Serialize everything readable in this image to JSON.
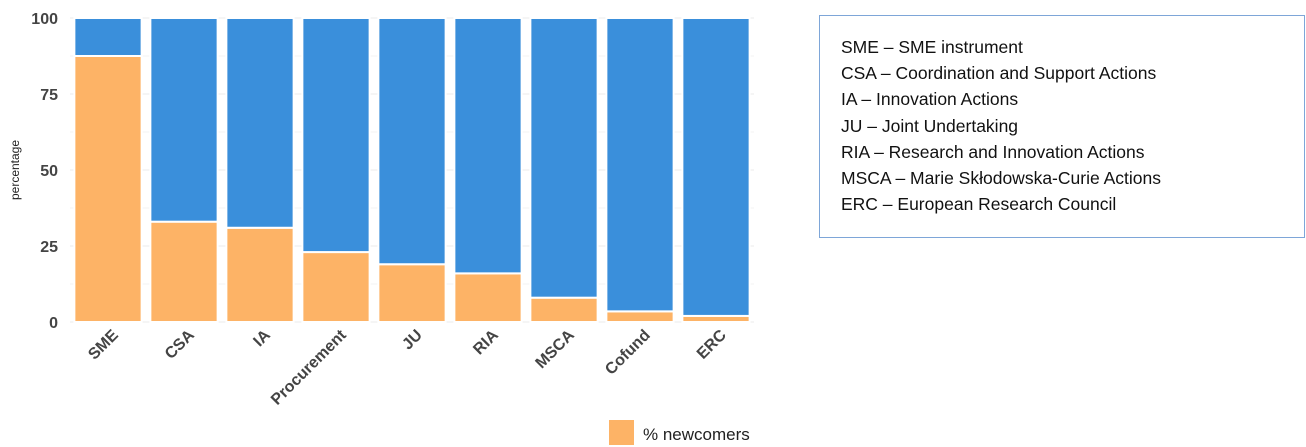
{
  "chart_data": {
    "type": "bar",
    "stacked": true,
    "categories": [
      "SME",
      "CSA",
      "IA",
      "Procurement",
      "JU",
      "RIA",
      "MSCA",
      "Cofund",
      "ERC"
    ],
    "series": [
      {
        "name": "% newcomers",
        "values": [
          87.5,
          33,
          31,
          23,
          19,
          16,
          8,
          3.5,
          2
        ],
        "color": "#fdb366"
      },
      {
        "name": "",
        "values": [
          12.5,
          67,
          69,
          77,
          81,
          84,
          92,
          96.5,
          98
        ],
        "color": "#3a8fdb"
      }
    ],
    "ylabel": "percentage",
    "xlabel": "",
    "ylim": [
      0,
      100
    ],
    "yticks": [
      "0",
      "25",
      "50",
      "75",
      "100"
    ],
    "grid": true,
    "legend": {
      "placement": "bottom-right",
      "entries": [
        "% newcomers"
      ]
    }
  },
  "abbreviations": [
    "SME – SME instrument",
    "CSA – Coordination and Support Actions",
    "IA – Innovation Actions",
    "JU – Joint Undertaking",
    "RIA – Research and Innovation Actions",
    "MSCA – Marie Skłodowska-Curie Actions",
    "ERC – European Research Council"
  ]
}
